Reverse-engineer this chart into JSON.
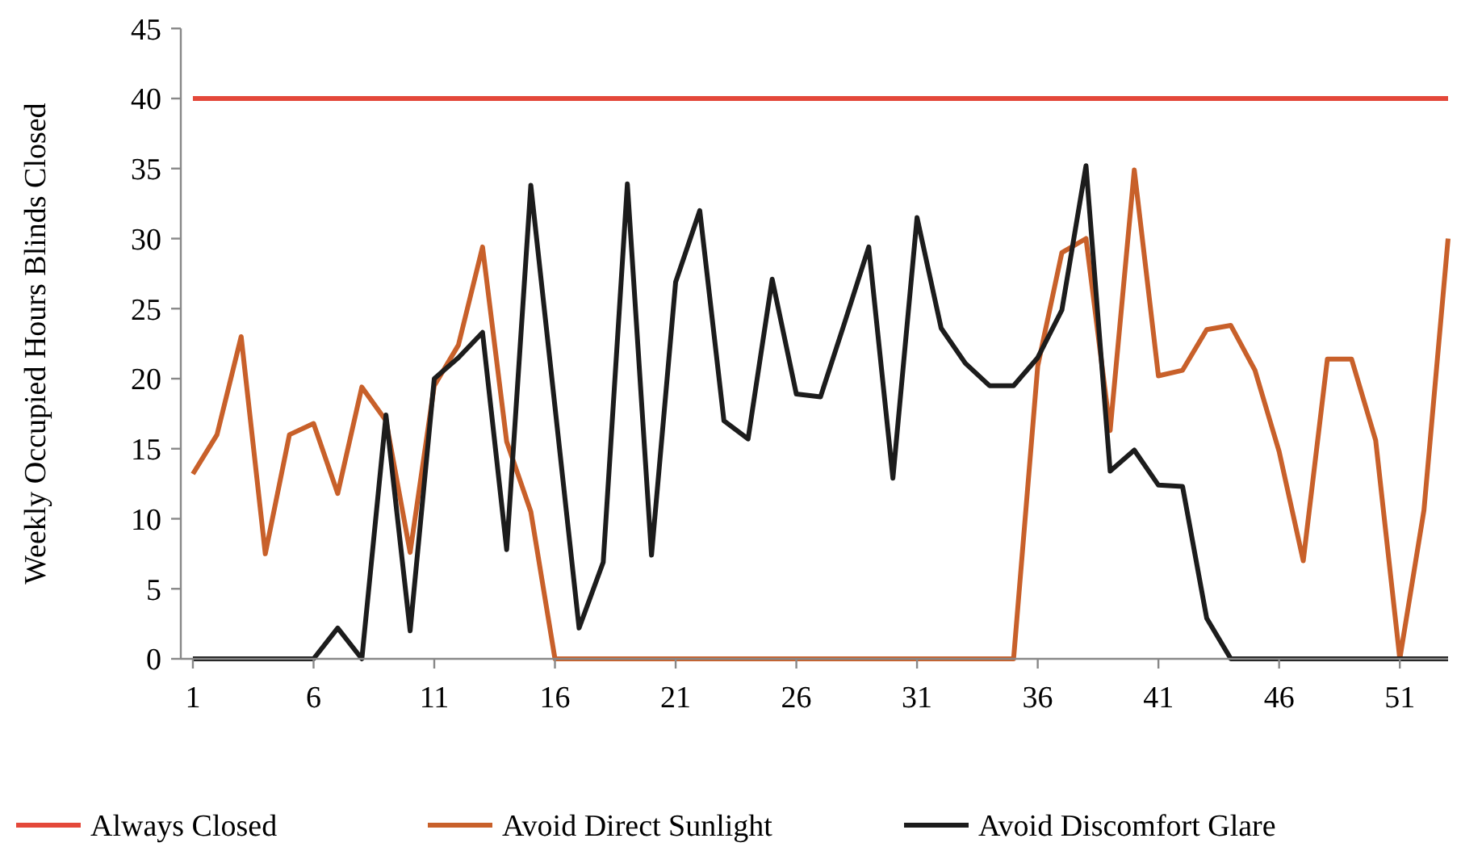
{
  "chart_data": {
    "type": "line",
    "ylabel": "Weekly Occupied Hours Blinds Closed",
    "x": [
      1,
      2,
      3,
      4,
      5,
      6,
      7,
      8,
      9,
      10,
      11,
      12,
      13,
      14,
      15,
      16,
      17,
      18,
      19,
      20,
      21,
      22,
      23,
      24,
      25,
      26,
      27,
      28,
      29,
      30,
      31,
      32,
      33,
      34,
      35,
      36,
      37,
      38,
      39,
      40,
      41,
      42,
      43,
      44,
      45,
      46,
      47,
      48,
      49,
      50,
      51,
      52,
      53
    ],
    "xlim": [
      0.5,
      53
    ],
    "xticks": [
      1,
      6,
      11,
      16,
      21,
      26,
      31,
      36,
      41,
      46,
      51
    ],
    "ylim": [
      0,
      45
    ],
    "yticks": [
      0,
      5,
      10,
      15,
      20,
      25,
      30,
      35,
      40,
      45
    ],
    "grid": false,
    "legend": "bottom",
    "marker": "none",
    "line_style": "solid",
    "series": [
      {
        "name": "Always Closed",
        "color": "#e4483a",
        "values": [
          40,
          40,
          40,
          40,
          40,
          40,
          40,
          40,
          40,
          40,
          40,
          40,
          40,
          40,
          40,
          40,
          40,
          40,
          40,
          40,
          40,
          40,
          40,
          40,
          40,
          40,
          40,
          40,
          40,
          40,
          40,
          40,
          40,
          40,
          40,
          40,
          40,
          40,
          40,
          40,
          40,
          40,
          40,
          40,
          40,
          40,
          40,
          40,
          40,
          40,
          40,
          40,
          40
        ]
      },
      {
        "name": "Avoid Direct Sunlight",
        "color": "#c8602a",
        "values": [
          13.2,
          16,
          23,
          7.5,
          16,
          16.8,
          11.8,
          19.4,
          17,
          7.6,
          19.5,
          22.4,
          29.4,
          15.5,
          10.5,
          0,
          0,
          0,
          0,
          0,
          0,
          0,
          0,
          0,
          0,
          0,
          0,
          0,
          0,
          0,
          0,
          0,
          0,
          0,
          0,
          20.9,
          29,
          30,
          16.3,
          34.9,
          20.2,
          20.6,
          23.5,
          23.8,
          20.6,
          14.8,
          7,
          21.4,
          21.4,
          15.6,
          0,
          10.6,
          30
        ]
      },
      {
        "name": "Avoid Discomfort Glare",
        "color": "#1c1c1c",
        "values": [
          0,
          0,
          0,
          0,
          0,
          0,
          2.2,
          0,
          17.4,
          2,
          20,
          21.5,
          23.3,
          7.8,
          33.8,
          18,
          2.2,
          6.9,
          33.9,
          7.4,
          26.9,
          32,
          17,
          15.7,
          27.1,
          18.9,
          18.7,
          24,
          29.4,
          12.9,
          31.5,
          23.6,
          21.1,
          19.5,
          19.5,
          21.5,
          24.9,
          35.2,
          13.4,
          14.9,
          12.4,
          12.3,
          2.9,
          0,
          0,
          0,
          0,
          0,
          0,
          0,
          0,
          0,
          0
        ]
      }
    ]
  }
}
